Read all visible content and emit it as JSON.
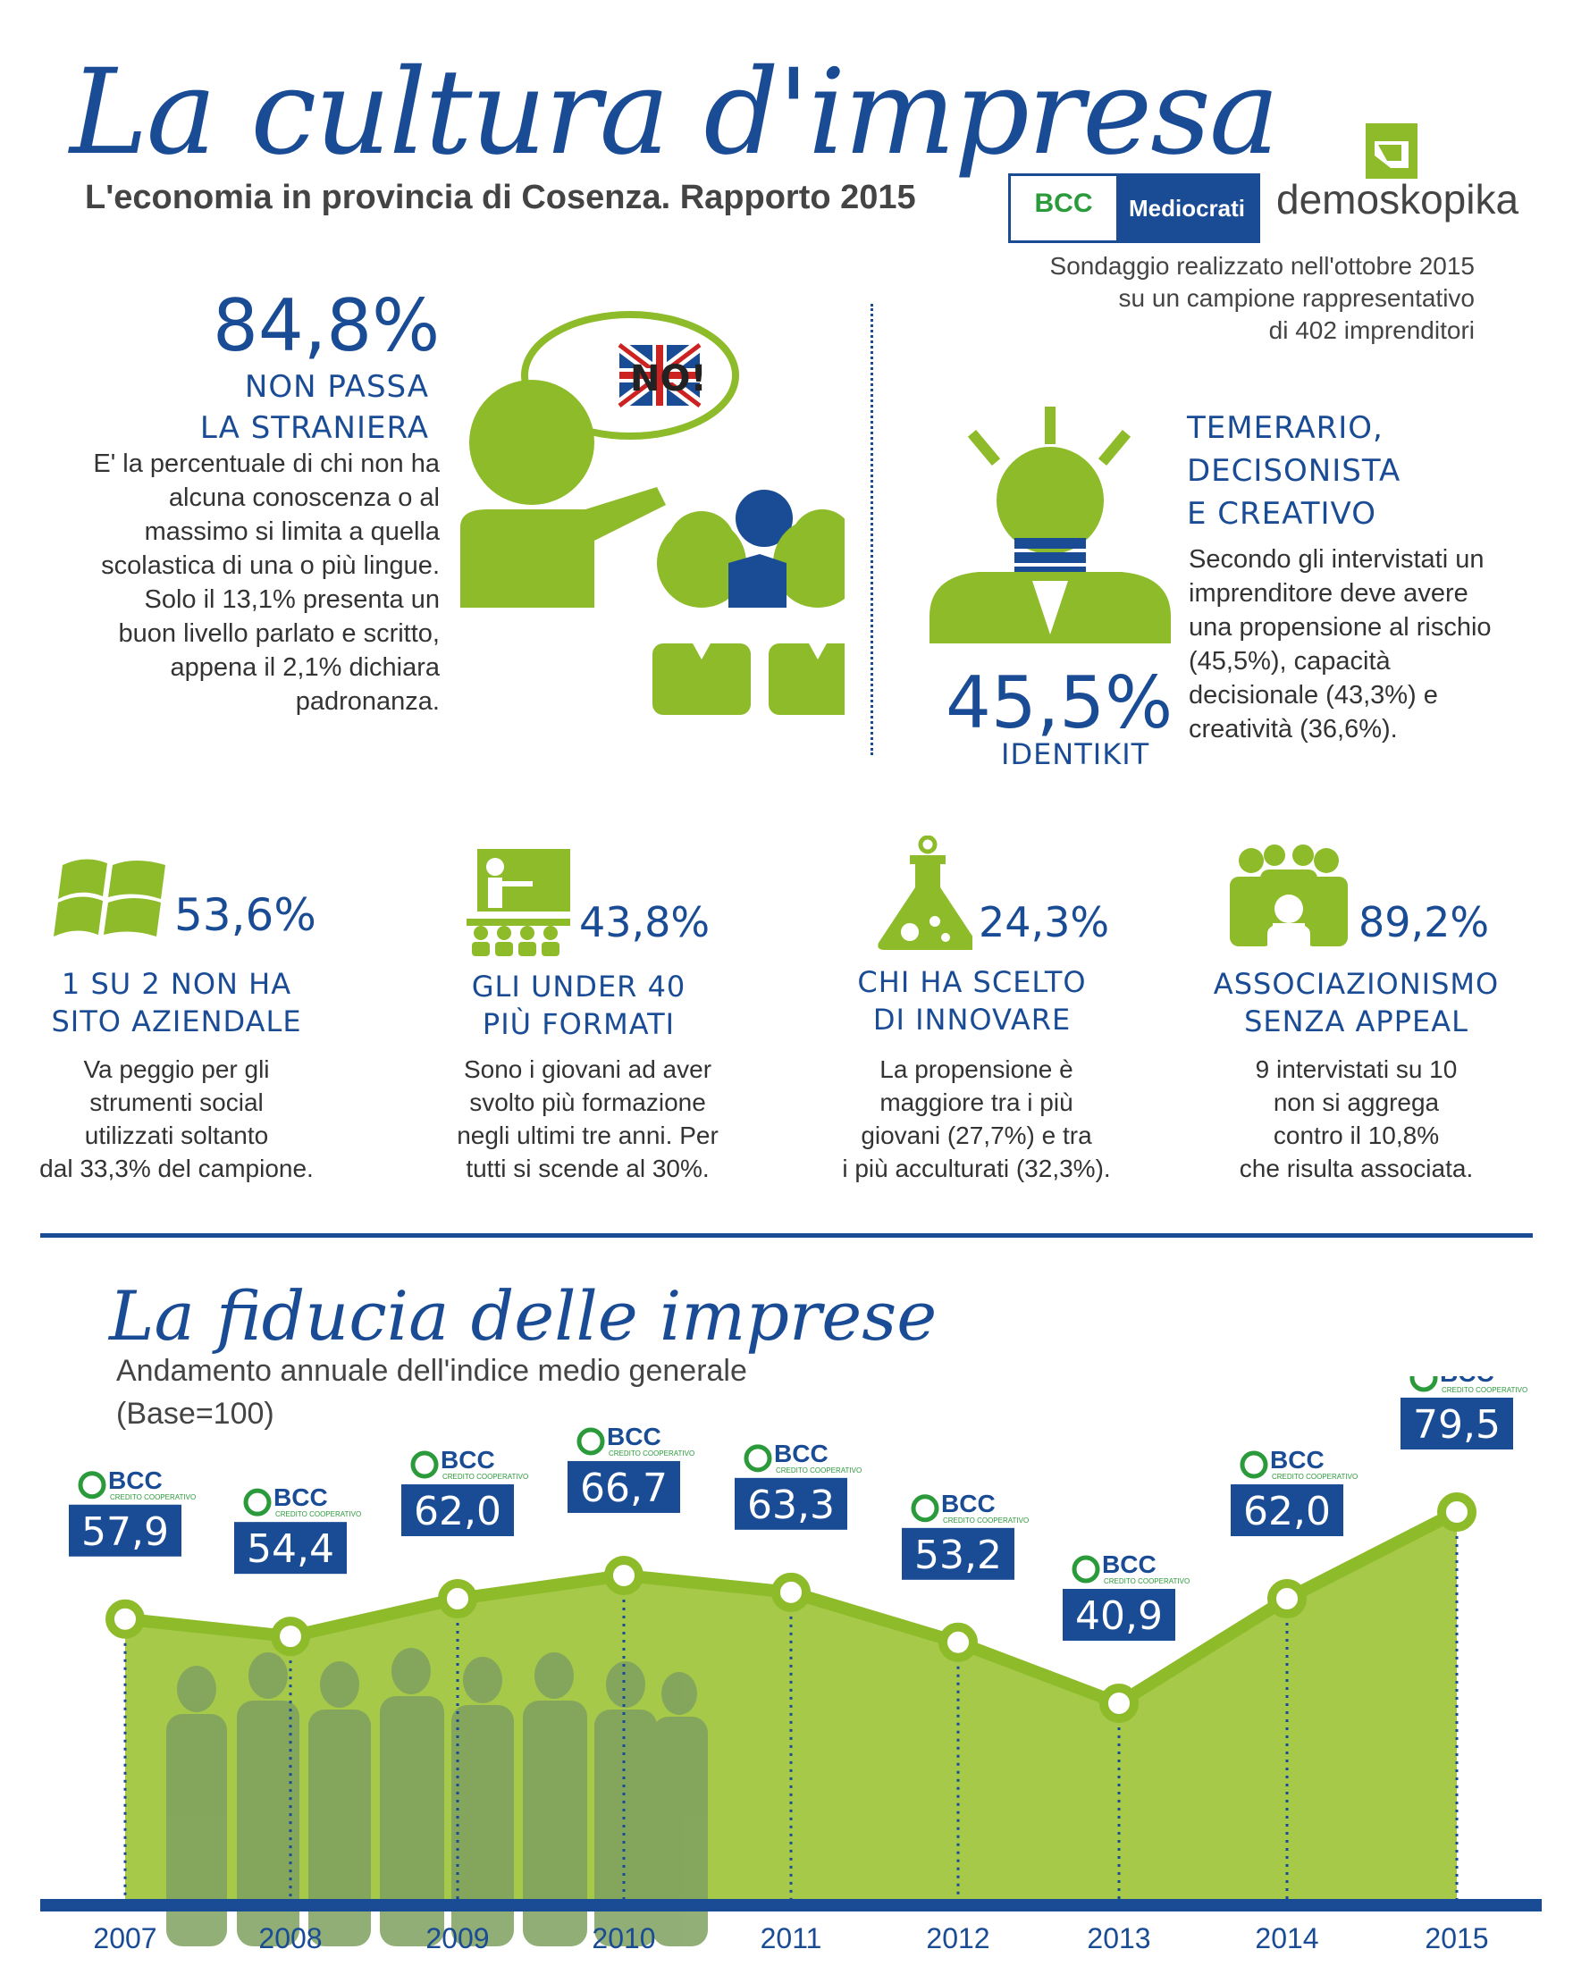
{
  "header": {
    "title": "La cultura d'impresa",
    "subtitle": "L'economia in provincia di Cosenza. Rapporto 2015",
    "logo_bcc": "BCC",
    "logo_mediocrati": "Mediocrati",
    "logo_demoskopika": "demoskopika",
    "survey_note": [
      "Sondaggio realizzato nell'ottobre 2015",
      "su un campione rappresentativo",
      "di 402 imprenditori"
    ]
  },
  "stat_language": {
    "value": "84,8%",
    "heading": [
      "NON PASSA",
      "LA STRANIERA"
    ],
    "bubble": "NO!",
    "text": "E' la percentuale di chi non ha alcuna conoscenza o al massimo si limita a quella scolastica di una o più lingue. Solo il 13,1% presenta un buon livello parlato e scritto,  appena il 2,1% dichiara padronanza."
  },
  "stat_identikit": {
    "value": "45,5%",
    "label": "IDENTIKIT",
    "heading": [
      "TEMERARIO,",
      "DECISONISTA",
      "E CREATIVO"
    ],
    "text": "Secondo gli intervistati un imprenditore deve avere una propensione al rischio (45,5%), capacità decisionale (43,3%) e creatività (36,6%)."
  },
  "stats": [
    {
      "value": "53,6%",
      "icon": "windows-icon",
      "heading": [
        "1 SU 2 NON HA",
        "SITO AZIENDALE"
      ],
      "text": [
        "Va peggio per gli",
        "strumenti social",
        "utilizzati soltanto",
        "dal 33,3% del campione."
      ]
    },
    {
      "value": "43,8%",
      "icon": "classroom-icon",
      "heading": [
        "GLI UNDER 40",
        "PIÙ FORMATI"
      ],
      "text": [
        "Sono i giovani ad aver",
        "svolto più formazione",
        "negli ultimi tre anni. Per",
        "tutti si scende al 30%."
      ]
    },
    {
      "value": "24,3%",
      "icon": "flask-icon",
      "heading": [
        "CHI HA SCELTO",
        "DI INNOVARE"
      ],
      "text": [
        "La propensione è",
        "maggiore tra i più",
        "giovani (27,7%) e tra",
        "i più acculturati (32,3%)."
      ]
    },
    {
      "value": "89,2%",
      "icon": "group-icon",
      "heading": [
        "ASSOCIAZIONISMO",
        "SENZA APPEAL"
      ],
      "text": [
        "9 intervistati su 10",
        "non si aggrega",
        "contro il 10,8%",
        "che risulta associata."
      ]
    }
  ],
  "chart_section": {
    "title": "La fiducia delle imprese",
    "subtitle_1": "Andamento annuale dell'indice medio generale",
    "subtitle_2": "(Base=100)",
    "badge_logo": "BCC",
    "badge_logo_sub": "CREDITO COOPERATIVO"
  },
  "chart_data": {
    "type": "area",
    "title": "La fiducia delle imprese",
    "x": [
      "2007",
      "2008",
      "2009",
      "2010",
      "2011",
      "2012",
      "2013",
      "2014",
      "2015"
    ],
    "values": [
      57.9,
      54.4,
      62.0,
      66.7,
      63.3,
      53.2,
      40.9,
      62.0,
      79.5
    ],
    "labels": [
      "57,9",
      "54,4",
      "62,0",
      "66,7",
      "63,3",
      "53,2",
      "40,9",
      "62,0",
      "79,5"
    ],
    "colors": {
      "fill": "#a7c94a",
      "line": "#8dbb2a",
      "accent": "#1a4b95"
    }
  }
}
